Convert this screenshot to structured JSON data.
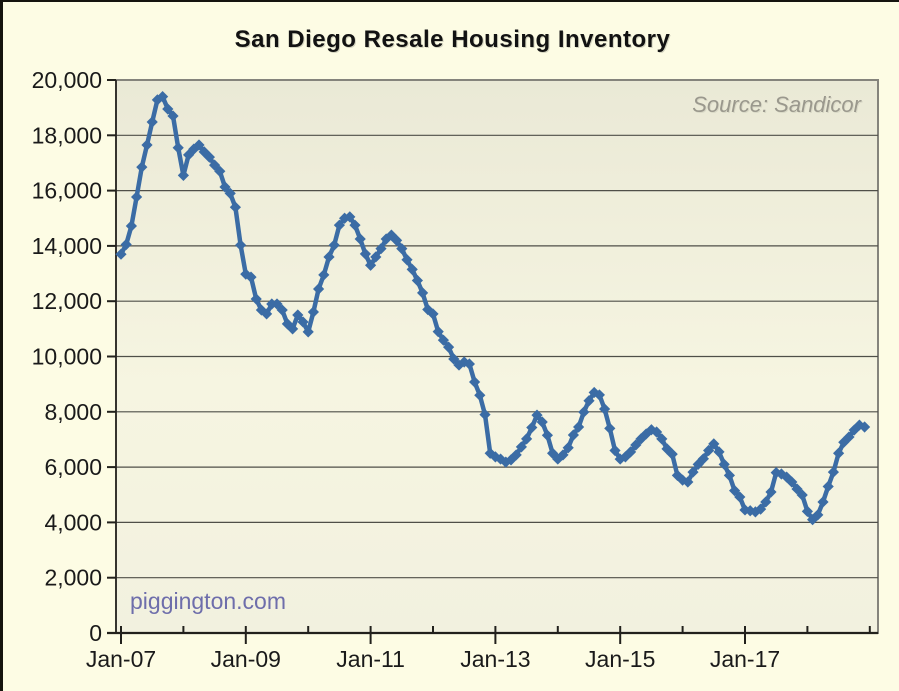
{
  "chart": {
    "title": "San Diego Resale Housing Inventory",
    "source_label": "Source: Sandicor",
    "watermark": "piggington.com",
    "colors": {
      "outer_background": "#fdfce4",
      "plot_background_top": "#eae9d6",
      "plot_background_mid": "#f6f5e1",
      "plot_background_bottom": "#f2f1df",
      "plot_border": "#85847c",
      "gridline": "#4f4f48",
      "axis": "#22211c",
      "line": "#3b6ca5",
      "tick_label": "#1a1a1a",
      "title_text": "#121212",
      "source_text": "#9a988d",
      "watermark_text": "#6e6eab"
    }
  },
  "chart_data": {
    "type": "line",
    "title": "San Diego Resale Housing Inventory",
    "xlabel": "",
    "ylabel": "",
    "ylim": [
      0,
      20000
    ],
    "y_tick_step": 2000,
    "y_tick_labels": [
      "0",
      "2,000",
      "4,000",
      "6,000",
      "8,000",
      "10,000",
      "12,000",
      "14,000",
      "16,000",
      "18,000",
      "20,000"
    ],
    "x_tick_labels": [
      "Jan-07",
      "Jan-09",
      "Jan-11",
      "Jan-13",
      "Jan-15",
      "Jan-17"
    ],
    "grid": "horizontal gridlines every 2,000",
    "legend": "none",
    "marker": "diamond",
    "x": [
      "Jan-07",
      "Feb-07",
      "Mar-07",
      "Apr-07",
      "May-07",
      "Jun-07",
      "Jul-07",
      "Aug-07",
      "Sep-07",
      "Oct-07",
      "Nov-07",
      "Dec-07",
      "Jan-08",
      "Feb-08",
      "Mar-08",
      "Apr-08",
      "May-08",
      "Jun-08",
      "Jul-08",
      "Aug-08",
      "Sep-08",
      "Oct-08",
      "Nov-08",
      "Dec-08",
      "Jan-09",
      "Feb-09",
      "Mar-09",
      "Apr-09",
      "May-09",
      "Jun-09",
      "Jul-09",
      "Aug-09",
      "Sep-09",
      "Oct-09",
      "Nov-09",
      "Dec-09",
      "Jan-10",
      "Feb-10",
      "Mar-10",
      "Apr-10",
      "May-10",
      "Jun-10",
      "Jul-10",
      "Aug-10",
      "Sep-10",
      "Oct-10",
      "Nov-10",
      "Dec-10",
      "Jan-11",
      "Feb-11",
      "Mar-11",
      "Apr-11",
      "May-11",
      "Jun-11",
      "Jul-11",
      "Aug-11",
      "Sep-11",
      "Oct-11",
      "Nov-11",
      "Dec-11",
      "Jan-12",
      "Feb-12",
      "Mar-12",
      "Apr-12",
      "May-12",
      "Jun-12",
      "Jul-12",
      "Aug-12",
      "Sep-12",
      "Oct-12",
      "Nov-12",
      "Dec-12",
      "Jan-13",
      "Feb-13",
      "Mar-13",
      "Apr-13",
      "May-13",
      "Jun-13",
      "Jul-13",
      "Aug-13",
      "Sep-13",
      "Oct-13",
      "Nov-13",
      "Dec-13",
      "Jan-14",
      "Feb-14",
      "Mar-14",
      "Apr-14",
      "May-14",
      "Jun-14",
      "Jul-14",
      "Aug-14",
      "Sep-14",
      "Oct-14",
      "Nov-14",
      "Dec-14",
      "Jan-15",
      "Feb-15",
      "Mar-15",
      "Apr-15",
      "May-15",
      "Jun-15",
      "Jul-15",
      "Aug-15",
      "Sep-15",
      "Oct-15",
      "Nov-15",
      "Dec-15",
      "Jan-16",
      "Feb-16",
      "Mar-16",
      "Apr-16",
      "May-16",
      "Jun-16",
      "Jul-16",
      "Aug-16",
      "Sep-16",
      "Oct-16",
      "Nov-16",
      "Dec-16",
      "Jan-17",
      "Feb-17",
      "Mar-17",
      "Apr-17",
      "May-17",
      "Jun-17",
      "Jul-17",
      "Aug-17",
      "Sep-17",
      "Oct-17",
      "Nov-17",
      "Dec-17",
      "Jan-18",
      "Feb-18",
      "Mar-18",
      "Apr-18",
      "May-18",
      "Jun-18",
      "Jul-18",
      "Aug-18",
      "Sep-18",
      "Oct-18",
      "Nov-18",
      "Dec-18"
    ],
    "series": [
      {
        "name": "Resale housing inventory",
        "values": [
          13700,
          14050,
          14720,
          15770,
          16850,
          17650,
          18480,
          19280,
          19400,
          18950,
          18700,
          17550,
          16550,
          17290,
          17500,
          17650,
          17400,
          17210,
          16920,
          16700,
          16130,
          15900,
          15400,
          14030,
          12980,
          12870,
          12080,
          11680,
          11540,
          11900,
          11900,
          11680,
          11180,
          11000,
          11500,
          11250,
          10890,
          11610,
          12440,
          12950,
          13600,
          14030,
          14750,
          15000,
          15050,
          14750,
          14250,
          13710,
          13300,
          13600,
          13900,
          14250,
          14390,
          14200,
          13900,
          13500,
          13150,
          12750,
          12300,
          11700,
          11540,
          10900,
          10590,
          10340,
          9910,
          9690,
          9800,
          9730,
          9080,
          8600,
          7900,
          6500,
          6370,
          6290,
          6180,
          6260,
          6440,
          6730,
          7020,
          7430,
          7880,
          7630,
          7150,
          6500,
          6290,
          6440,
          6700,
          7160,
          7450,
          7990,
          8400,
          8700,
          8610,
          8100,
          7400,
          6600,
          6290,
          6370,
          6550,
          6800,
          7020,
          7200,
          7350,
          7270,
          7020,
          6660,
          6470,
          5700,
          5530,
          5460,
          5820,
          6100,
          6300,
          6600,
          6840,
          6550,
          6100,
          5700,
          5150,
          4920,
          4450,
          4420,
          4380,
          4480,
          4740,
          5100,
          5800,
          5750,
          5640,
          5460,
          5210,
          4990,
          4400,
          4100,
          4270,
          4740,
          5300,
          5820,
          6500,
          6900,
          7090,
          7340,
          7520,
          7450
        ]
      }
    ]
  }
}
